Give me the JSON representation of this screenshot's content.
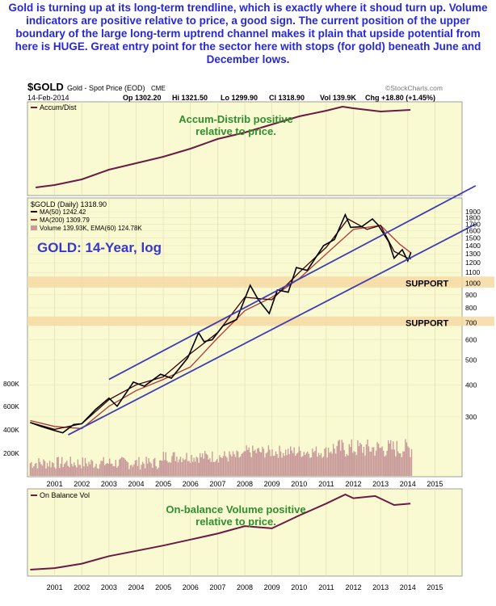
{
  "headline": "Gold is turning up at its long-term trendline, which is exactly where it shoud turn up. Volume indicators are positive relative to price, a good sign. The current position of the upper boundary of the large long-term uptrend channel makes it plain that upside potential from here is HUGE. Great entry point for the sector here with stops (for gold) beneath June and December lows.",
  "header": {
    "symbol": "$GOLD",
    "description": "Gold - Spot Price (EOD)",
    "exchange": "CME",
    "source": "©StockCharts.com",
    "date": "14-Feb-2014",
    "open": "Op 1302.20",
    "high": "Hi 1321.50",
    "low": "Lo 1299.90",
    "close": "Cl 1318.90",
    "volume": "Vol 139.9K",
    "change": "Chg +18.80 (+1.45%)"
  },
  "colors": {
    "panel_bg": "#fafad2",
    "price_line": "#000000",
    "ma50": "#3a0000",
    "ma200": "#b23434",
    "indicator_line": "#6b1a46",
    "trend_line": "#3c3cb4",
    "support_band": "#f5d9a3",
    "volume_bars": "#c99a9a",
    "annotation_text": "#2f8f2f",
    "title_text": "#3838c8"
  },
  "chart_data": [
    {
      "type": "line",
      "panel": "Accum/Dist",
      "legend": "Accum/Dist",
      "annotation": "Accum-Distrib positive relative to price.",
      "x": [
        2000.3,
        2001,
        2002,
        2003,
        2004,
        2005,
        2006,
        2007,
        2008,
        2009,
        2010,
        2011,
        2011.6,
        2012,
        2013,
        2014.1
      ],
      "y": [
        0,
        3,
        10,
        22,
        30,
        38,
        48,
        60,
        68,
        78,
        88,
        95,
        100,
        98,
        94,
        96
      ]
    },
    {
      "type": "line",
      "panel": "Price",
      "title": "GOLD: 14-Year, log",
      "legend": [
        "$GOLD (Daily) 1318.90",
        "MA(50) 1242.42",
        "MA(200) 1309.79",
        "Volume 139.93K, EMA(60) 124.78K"
      ],
      "y_scale": "log",
      "x_ticks": [
        "2001",
        "2002",
        "2003",
        "2004",
        "2005",
        "2006",
        "2007",
        "2008",
        "2009",
        "2010",
        "2011",
        "2012",
        "2013",
        "2014",
        "2015"
      ],
      "y_ticks": [
        "1900",
        "1800",
        "1700",
        "1600",
        "1500",
        "1400",
        "1300",
        "1200",
        "1100",
        "1000",
        "900",
        "800",
        "700",
        "600",
        "500",
        "400",
        "300"
      ],
      "volume_ticks": [
        "800K",
        "600K",
        "400K",
        "200K"
      ],
      "support_zones": [
        {
          "label": "SUPPORT",
          "level": 1000,
          "range": [
            960,
            1060
          ]
        },
        {
          "label": "SUPPORT",
          "level": 700,
          "range": [
            680,
            740
          ]
        }
      ],
      "series": [
        {
          "name": "$GOLD (Daily)",
          "x": [
            2000.1,
            2000.5,
            2001.0,
            2001.3,
            2001.7,
            2002.0,
            2002.5,
            2003.0,
            2003.3,
            2003.9,
            2004.3,
            2004.9,
            2005.3,
            2005.9,
            2006.3,
            2006.5,
            2006.8,
            2007.2,
            2007.7,
            2008.2,
            2008.5,
            2008.9,
            2009.2,
            2009.6,
            2009.9,
            2010.3,
            2010.9,
            2011.3,
            2011.7,
            2011.9,
            2012.3,
            2012.7,
            2012.9,
            2013.3,
            2013.5,
            2013.8,
            2014.0,
            2014.12
          ],
          "y": [
            285,
            275,
            265,
            260,
            280,
            282,
            320,
            355,
            330,
            410,
            395,
            440,
            425,
            510,
            640,
            590,
            600,
            680,
            720,
            980,
            860,
            760,
            940,
            920,
            1150,
            1120,
            1400,
            1480,
            1850,
            1650,
            1660,
            1780,
            1690,
            1450,
            1250,
            1350,
            1220,
            1318
          ]
        },
        {
          "name": "MA(50)",
          "x": [
            2000.1,
            2001.0,
            2002.0,
            2003.0,
            2004.0,
            2005.0,
            2006.0,
            2007.0,
            2008.0,
            2009.0,
            2010.0,
            2011.0,
            2011.8,
            2012.5,
            2013.0,
            2013.5,
            2014.0,
            2014.12
          ],
          "y": [
            285,
            268,
            282,
            350,
            400,
            430,
            530,
            640,
            880,
            860,
            1100,
            1380,
            1780,
            1620,
            1680,
            1330,
            1250,
            1242
          ]
        },
        {
          "name": "MA(200)",
          "x": [
            2000.1,
            2001.0,
            2002.0,
            2003.0,
            2004.0,
            2005.0,
            2006.0,
            2007.0,
            2008.0,
            2009.0,
            2010.0,
            2011.0,
            2012.0,
            2013.0,
            2013.7,
            2014.12
          ],
          "y": [
            290,
            275,
            270,
            330,
            380,
            420,
            470,
            610,
            780,
            880,
            1040,
            1300,
            1620,
            1680,
            1420,
            1310
          ]
        }
      ],
      "trendlines": [
        {
          "name": "upper channel",
          "x": [
            2003.0,
            2016.5
          ],
          "y": [
            420,
            2400
          ]
        },
        {
          "name": "lower channel",
          "x": [
            2001.5,
            2016.5
          ],
          "y": [
            255,
            1700
          ]
        }
      ]
    },
    {
      "type": "line",
      "panel": "On Balance Vol",
      "legend": "On Balance Vol",
      "annotation": "On-balance Volume positive relative to price.",
      "x_ticks": [
        "2001",
        "2002",
        "2003",
        "2004",
        "2005",
        "2006",
        "2007",
        "2008",
        "2009",
        "2010",
        "2011",
        "2012",
        "2013",
        "2014",
        "2015"
      ],
      "x": [
        2000.1,
        2001,
        2002,
        2003,
        2004,
        2005,
        2006,
        2007,
        2008,
        2009,
        2010,
        2011,
        2011.7,
        2012,
        2012.8,
        2013.5,
        2014.1
      ],
      "y": [
        0,
        2,
        8,
        18,
        25,
        32,
        40,
        48,
        58,
        55,
        72,
        88,
        100,
        95,
        98,
        86,
        88
      ]
    }
  ]
}
